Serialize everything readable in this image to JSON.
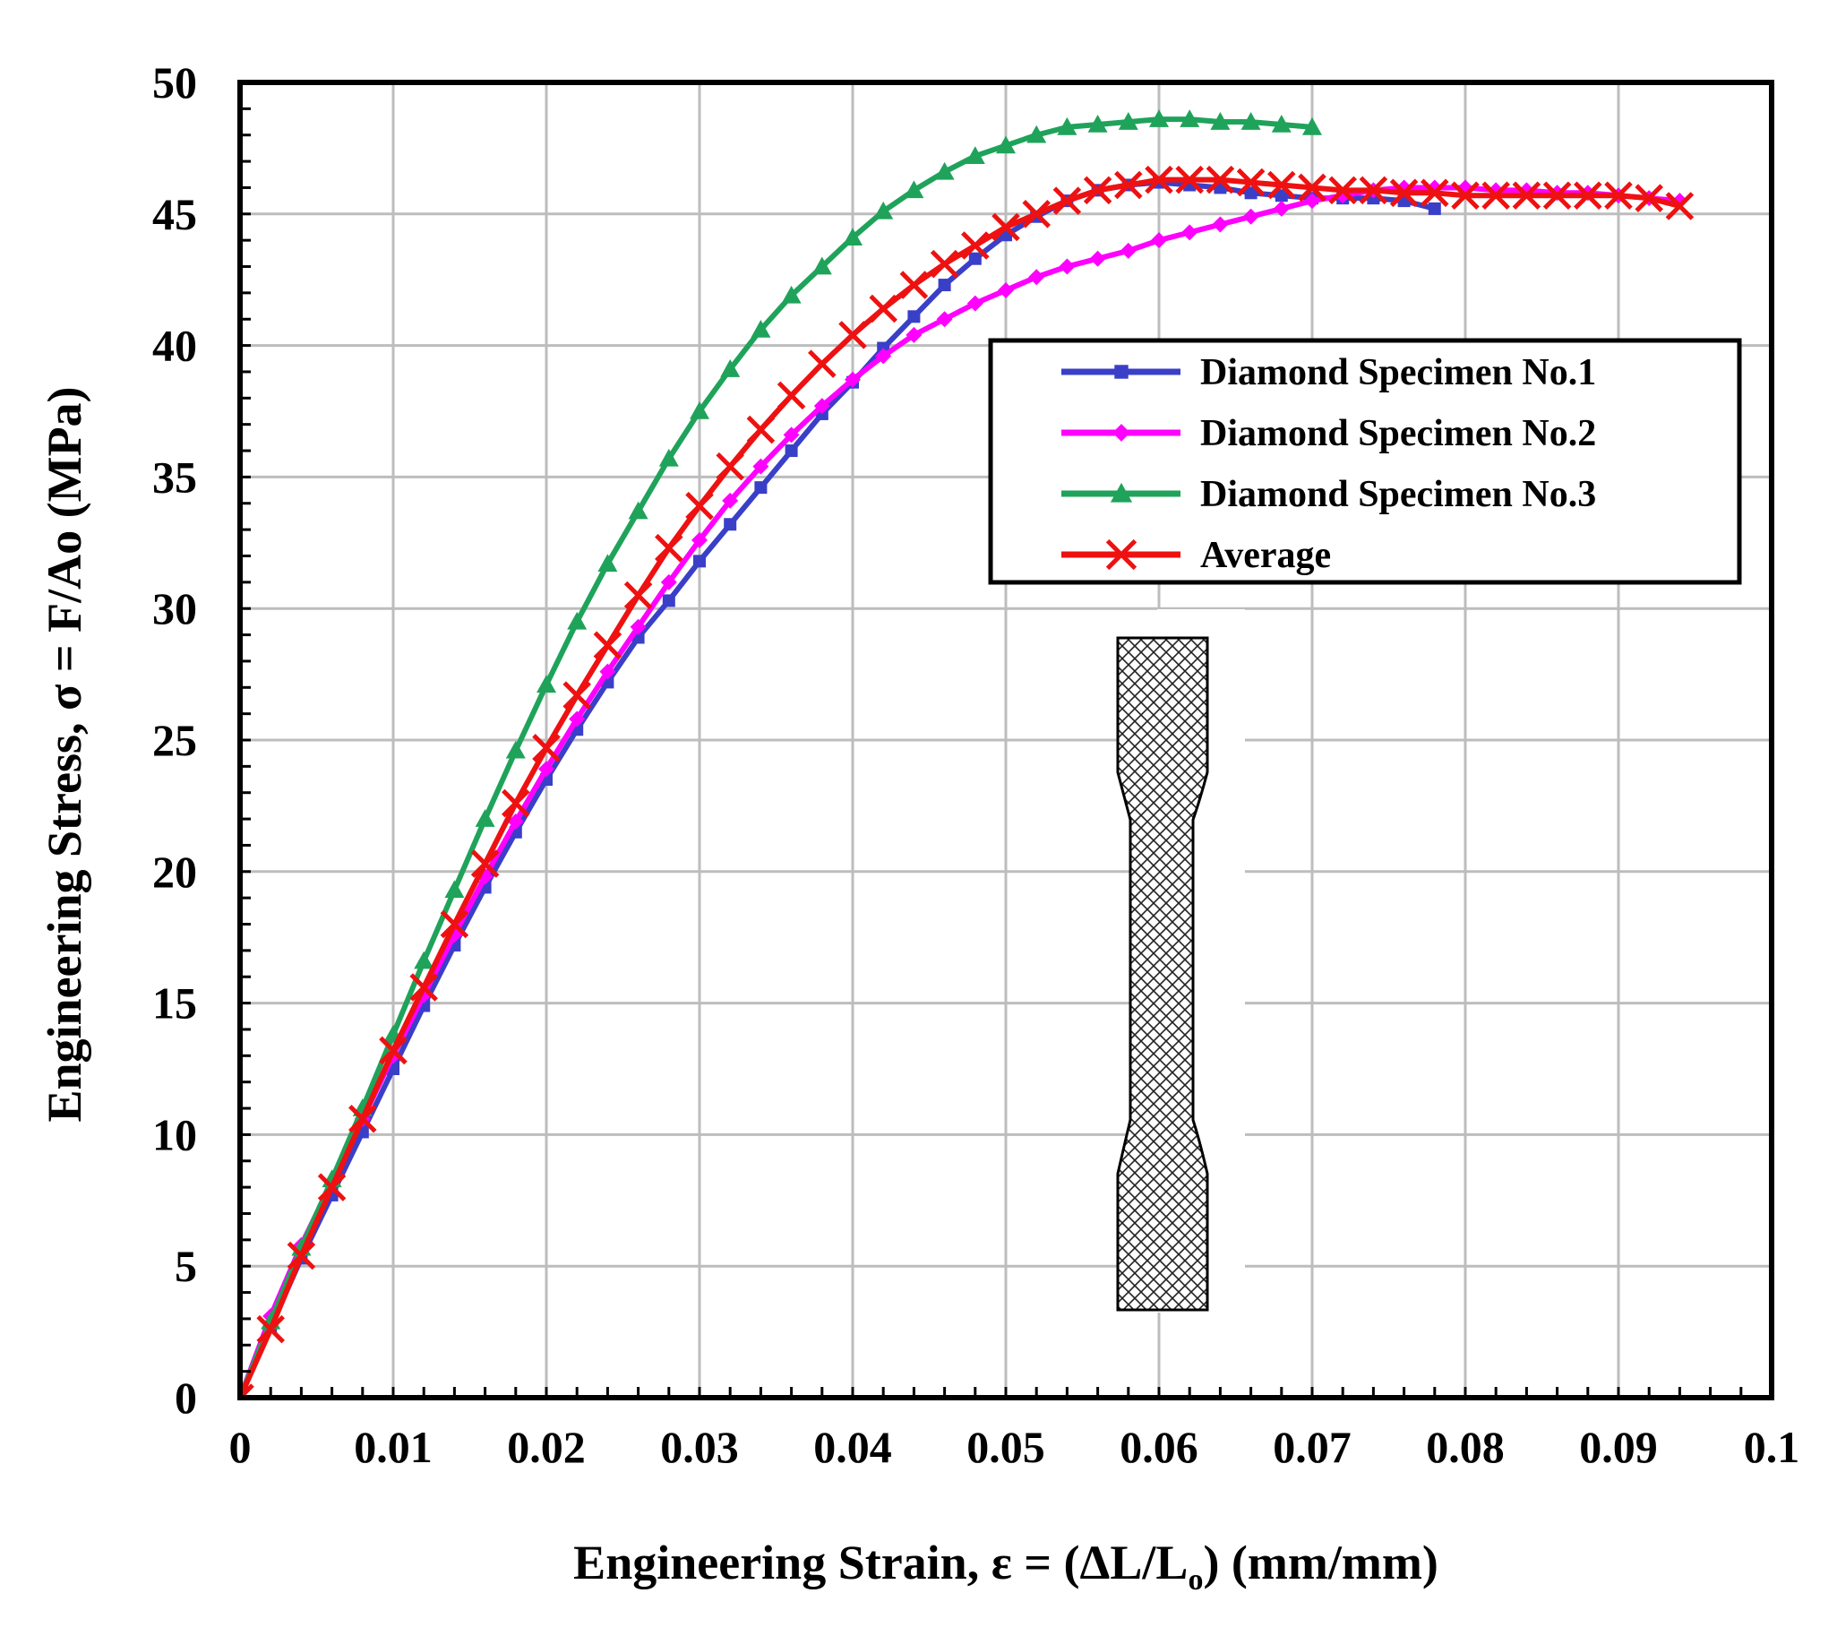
{
  "chart_data": {
    "type": "line",
    "title": "",
    "xlabel": "Engineering Strain, ε = (ΔL/L",
    "xlabel_sub": "o",
    "xlabel_tail": ") (mm/mm)",
    "ylabel": "Engineering Stress, σ = F/Ao (MPa)",
    "xlim": [
      0,
      0.1
    ],
    "ylim": [
      0,
      50
    ],
    "x_ticks": [
      "0",
      "0.01",
      "0.02",
      "0.03",
      "0.04",
      "0.05",
      "0.06",
      "0.07",
      "0.08",
      "0.09",
      "0.1"
    ],
    "y_ticks": [
      "0",
      "5",
      "10",
      "15",
      "20",
      "25",
      "30",
      "35",
      "40",
      "45",
      "50"
    ],
    "grid": true,
    "legend_position": "right-upper-middle",
    "series": [
      {
        "name": "Diamond Specimen No.1",
        "color": "#3a3fc8",
        "marker": "square",
        "x": [
          0,
          0.002,
          0.004,
          0.006,
          0.008,
          0.01,
          0.012,
          0.014,
          0.016,
          0.018,
          0.02,
          0.022,
          0.024,
          0.026,
          0.028,
          0.03,
          0.032,
          0.034,
          0.036,
          0.038,
          0.04,
          0.042,
          0.044,
          0.046,
          0.048,
          0.05,
          0.052,
          0.054,
          0.056,
          0.058,
          0.06,
          0.062,
          0.064,
          0.066,
          0.068,
          0.07,
          0.072,
          0.074,
          0.076,
          0.078
        ],
        "y": [
          0,
          2.7,
          5.3,
          7.7,
          10.1,
          12.5,
          14.9,
          17.2,
          19.4,
          21.5,
          23.5,
          25.4,
          27.2,
          28.9,
          30.3,
          31.8,
          33.2,
          34.6,
          36.0,
          37.4,
          38.6,
          39.9,
          41.1,
          42.3,
          43.3,
          44.2,
          44.9,
          45.5,
          45.9,
          46.1,
          46.2,
          46.1,
          46.0,
          45.8,
          45.7,
          45.6,
          45.6,
          45.6,
          45.5,
          45.2
        ]
      },
      {
        "name": "Diamond Specimen No.2",
        "color": "#ff00ff",
        "marker": "diamond",
        "x": [
          0,
          0.002,
          0.004,
          0.006,
          0.008,
          0.01,
          0.012,
          0.014,
          0.016,
          0.018,
          0.02,
          0.022,
          0.024,
          0.026,
          0.028,
          0.03,
          0.032,
          0.034,
          0.036,
          0.038,
          0.04,
          0.042,
          0.044,
          0.046,
          0.048,
          0.05,
          0.052,
          0.054,
          0.056,
          0.058,
          0.06,
          0.062,
          0.064,
          0.066,
          0.068,
          0.07,
          0.072,
          0.074,
          0.076,
          0.078,
          0.08,
          0.082,
          0.084,
          0.086,
          0.088,
          0.09,
          0.092,
          0.094
        ],
        "y": [
          0,
          3.1,
          5.8,
          8.2,
          10.6,
          13.0,
          15.3,
          17.6,
          19.8,
          21.9,
          23.9,
          25.8,
          27.6,
          29.3,
          31.0,
          32.6,
          34.1,
          35.4,
          36.6,
          37.7,
          38.7,
          39.6,
          40.4,
          41.0,
          41.6,
          42.1,
          42.6,
          43.0,
          43.3,
          43.6,
          44.0,
          44.3,
          44.6,
          44.9,
          45.2,
          45.5,
          45.7,
          45.9,
          46.0,
          46.0,
          46.0,
          45.9,
          45.9,
          45.8,
          45.8,
          45.7,
          45.6,
          45.5
        ]
      },
      {
        "name": "Diamond Specimen No.3",
        "color": "#1fa35a",
        "marker": "triangle",
        "x": [
          0,
          0.002,
          0.004,
          0.006,
          0.008,
          0.01,
          0.012,
          0.014,
          0.016,
          0.018,
          0.02,
          0.022,
          0.024,
          0.026,
          0.028,
          0.03,
          0.032,
          0.034,
          0.036,
          0.038,
          0.04,
          0.042,
          0.044,
          0.046,
          0.048,
          0.05,
          0.052,
          0.054,
          0.056,
          0.058,
          0.06,
          0.062,
          0.064,
          0.066,
          0.068,
          0.07
        ],
        "y": [
          0,
          2.9,
          5.7,
          8.3,
          11.0,
          13.8,
          16.6,
          19.3,
          22.0,
          24.6,
          27.1,
          29.5,
          31.7,
          33.7,
          35.7,
          37.5,
          39.1,
          40.6,
          41.9,
          43.0,
          44.1,
          45.1,
          45.9,
          46.6,
          47.2,
          47.6,
          48.0,
          48.3,
          48.4,
          48.5,
          48.6,
          48.6,
          48.5,
          48.5,
          48.4,
          48.3
        ]
      },
      {
        "name": "Average",
        "color": "#ee1111",
        "marker": "x",
        "x": [
          0,
          0.002,
          0.004,
          0.006,
          0.008,
          0.01,
          0.012,
          0.014,
          0.016,
          0.018,
          0.02,
          0.022,
          0.024,
          0.026,
          0.028,
          0.03,
          0.032,
          0.034,
          0.036,
          0.038,
          0.04,
          0.042,
          0.044,
          0.046,
          0.048,
          0.05,
          0.052,
          0.054,
          0.056,
          0.058,
          0.06,
          0.062,
          0.064,
          0.066,
          0.068,
          0.07,
          0.072,
          0.074,
          0.076,
          0.078,
          0.08,
          0.082,
          0.084,
          0.086,
          0.088,
          0.09,
          0.092,
          0.094
        ],
        "y": [
          0,
          2.6,
          5.4,
          8.0,
          10.6,
          13.2,
          15.6,
          18.0,
          20.3,
          22.6,
          24.7,
          26.7,
          28.6,
          30.5,
          32.3,
          33.9,
          35.4,
          36.8,
          38.1,
          39.3,
          40.4,
          41.4,
          42.3,
          43.1,
          43.8,
          44.5,
          45.0,
          45.5,
          45.9,
          46.1,
          46.3,
          46.3,
          46.3,
          46.2,
          46.1,
          46.0,
          45.9,
          45.9,
          45.8,
          45.8,
          45.7,
          45.7,
          45.7,
          45.7,
          45.7,
          45.7,
          45.6,
          45.3
        ]
      }
    ]
  }
}
